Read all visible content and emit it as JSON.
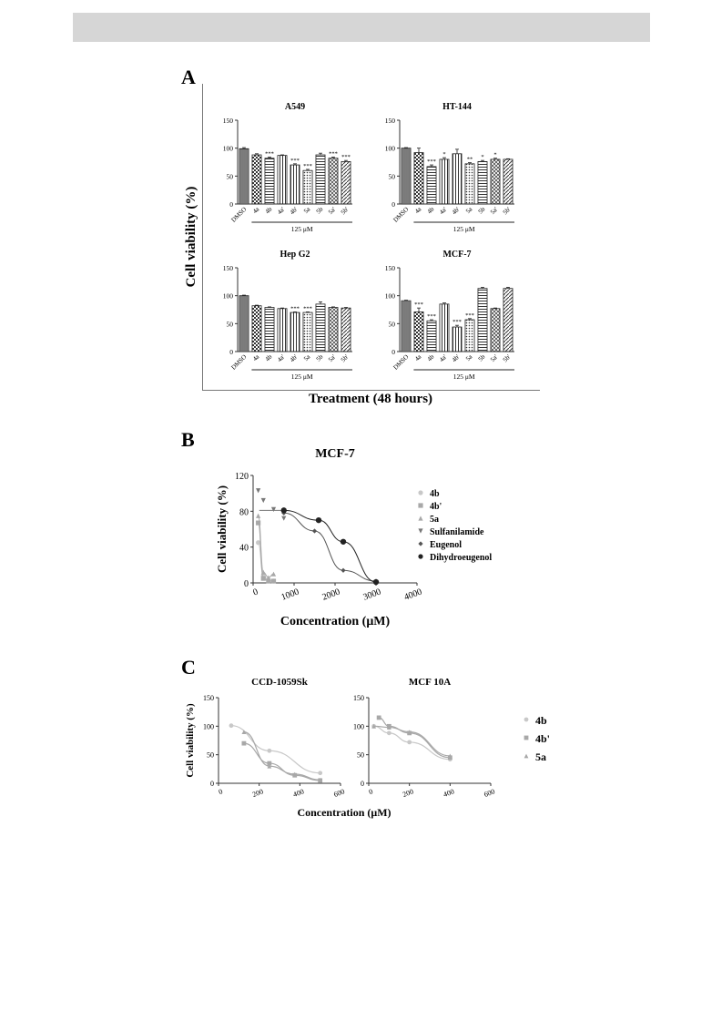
{
  "page": {
    "panels": [
      "A",
      "B",
      "C"
    ]
  },
  "colors": {
    "axis": "#333333",
    "bar_fill": "#ffffff",
    "light": "#c8c8c8",
    "mid": "#a8a8a8",
    "dark": "#444444"
  },
  "panel_a": {
    "ylabel": "Cell viability (%)",
    "xlabel": "Treatment (48 hours)",
    "treatment_label": "125 μM"
  },
  "panel_b": {
    "title": "MCF-7",
    "ylabel": "Cell viability (%)",
    "xlabel": "Concentration (μM)"
  },
  "panel_c": {
    "ylabel": "Cell viability (%)",
    "xlabel": "Concentration (μM)"
  },
  "chart_data": [
    {
      "id": "A1",
      "type": "bar",
      "title": "A549",
      "categories": [
        "DMSO",
        "4a",
        "4b",
        "4a'",
        "4b'",
        "5a",
        "5b",
        "5a'",
        "5b'"
      ],
      "values": [
        99,
        88,
        82,
        87,
        70,
        60,
        88,
        82,
        76
      ],
      "errors": [
        2,
        2,
        2,
        1,
        2,
        2,
        3,
        2,
        2
      ],
      "significance": [
        "",
        "",
        "***",
        "",
        "***",
        "***",
        "",
        "***",
        "***"
      ],
      "ylim": [
        0,
        150
      ],
      "yticks": [
        0,
        50,
        100,
        150
      ]
    },
    {
      "id": "A2",
      "type": "bar",
      "title": "HT-144",
      "categories": [
        "DMSO",
        "4a",
        "4b",
        "4a'",
        "4b'",
        "5a",
        "5b",
        "5a'",
        "5b'"
      ],
      "values": [
        100,
        92,
        67,
        80,
        90,
        72,
        76,
        80,
        80
      ],
      "errors": [
        1,
        8,
        3,
        3,
        8,
        2,
        2,
        2,
        1
      ],
      "significance": [
        "",
        "",
        "***",
        "*",
        "",
        "**",
        "*",
        "*",
        ""
      ],
      "ylim": [
        0,
        150
      ],
      "yticks": [
        0,
        50,
        100,
        150
      ]
    },
    {
      "id": "A3",
      "type": "bar",
      "title": "Hep G2",
      "categories": [
        "DMSO",
        "4a",
        "4b",
        "4a'",
        "4b'",
        "5a",
        "5b",
        "5a'",
        "5b'"
      ],
      "values": [
        100,
        82,
        79,
        77,
        70,
        70,
        85,
        79,
        78
      ],
      "errors": [
        1,
        1,
        1,
        1,
        1,
        1,
        4,
        1,
        1
      ],
      "significance": [
        "",
        "",
        "",
        "",
        "***",
        "***",
        "",
        "",
        ""
      ],
      "ylim": [
        0,
        150
      ],
      "yticks": [
        0,
        50,
        100,
        150
      ]
    },
    {
      "id": "A4",
      "type": "bar",
      "title": "MCF-7",
      "categories": [
        "DMSO",
        "4a",
        "4b",
        "4a'",
        "4b'",
        "5a",
        "5b",
        "5a'",
        "5b'"
      ],
      "values": [
        91,
        71,
        55,
        85,
        44,
        57,
        113,
        77,
        113
      ],
      "errors": [
        1,
        7,
        2,
        2,
        3,
        2,
        2,
        1,
        2
      ],
      "significance": [
        "",
        "***",
        "***",
        "",
        "***",
        "***",
        "",
        "",
        ""
      ],
      "ylim": [
        0,
        150
      ],
      "yticks": [
        0,
        50,
        100,
        150
      ]
    },
    {
      "id": "B",
      "type": "scatter",
      "title": "MCF-7",
      "xlim": [
        0,
        4000
      ],
      "ylim": [
        0,
        120
      ],
      "xticks": [
        0,
        1000,
        2000,
        3000,
        4000
      ],
      "yticks": [
        0,
        40,
        80,
        120
      ],
      "series": [
        {
          "name": "4b",
          "x": [
            125,
            250,
            375,
            500
          ],
          "y": [
            45,
            8,
            3,
            2
          ],
          "marker": "circle",
          "color": "#c8c8c8"
        },
        {
          "name": "4b'",
          "x": [
            125,
            250,
            375,
            500
          ],
          "y": [
            67,
            5,
            2,
            2
          ],
          "marker": "square",
          "color": "#a8a8a8"
        },
        {
          "name": "5a",
          "x": [
            125,
            250,
            375,
            500
          ],
          "y": [
            75,
            12,
            6,
            10
          ],
          "marker": "triangle",
          "color": "#a8a8a8"
        },
        {
          "name": "Sulfanilamide",
          "x": [
            125,
            250,
            500,
            750
          ],
          "y": [
            103,
            92,
            82,
            72
          ],
          "marker": "triangle-down",
          "color": "#777777"
        },
        {
          "name": "Eugenol",
          "x": [
            750,
            1500,
            2200,
            3000
          ],
          "y": [
            78,
            58,
            14,
            2
          ],
          "marker": "diamond",
          "color": "#555555"
        },
        {
          "name": "Dihydroeugenol",
          "x": [
            750,
            1600,
            2200,
            3000
          ],
          "y": [
            81,
            70,
            46,
            1
          ],
          "marker": "circle",
          "color": "#222222"
        }
      ]
    },
    {
      "id": "C1",
      "type": "scatter",
      "title": "CCD-1059Sk",
      "xlim": [
        0,
        600
      ],
      "ylim": [
        0,
        150
      ],
      "xticks": [
        0,
        200,
        400,
        600
      ],
      "yticks": [
        0,
        50,
        100,
        150
      ],
      "series": [
        {
          "name": "4b",
          "x": [
            62.5,
            250,
            500
          ],
          "y": [
            101,
            57,
            18
          ],
          "marker": "circle",
          "color": "#c8c8c8"
        },
        {
          "name": "4b'",
          "x": [
            125,
            250,
            375,
            500
          ],
          "y": [
            70,
            35,
            14,
            5
          ],
          "marker": "square",
          "color": "#a8a8a8"
        },
        {
          "name": "5a",
          "x": [
            125,
            250,
            375,
            500
          ],
          "y": [
            90,
            30,
            16,
            6
          ],
          "marker": "triangle",
          "color": "#a8a8a8"
        }
      ]
    },
    {
      "id": "C2",
      "type": "scatter",
      "title": "MCF 10A",
      "xlim": [
        0,
        600
      ],
      "ylim": [
        0,
        150
      ],
      "xticks": [
        0,
        200,
        400,
        600
      ],
      "yticks": [
        0,
        50,
        100,
        150
      ],
      "series": [
        {
          "name": "4b",
          "x": [
            25,
            100,
            200,
            400
          ],
          "y": [
            100,
            88,
            72,
            42
          ],
          "marker": "circle",
          "color": "#c8c8c8"
        },
        {
          "name": "4b'",
          "x": [
            50,
            100,
            200,
            400
          ],
          "y": [
            115,
            100,
            88,
            45
          ],
          "marker": "square",
          "color": "#a8a8a8"
        },
        {
          "name": "5a",
          "x": [
            25,
            100,
            200,
            400
          ],
          "y": [
            100,
            98,
            90,
            48
          ],
          "marker": "triangle",
          "color": "#a8a8a8"
        }
      ]
    }
  ]
}
